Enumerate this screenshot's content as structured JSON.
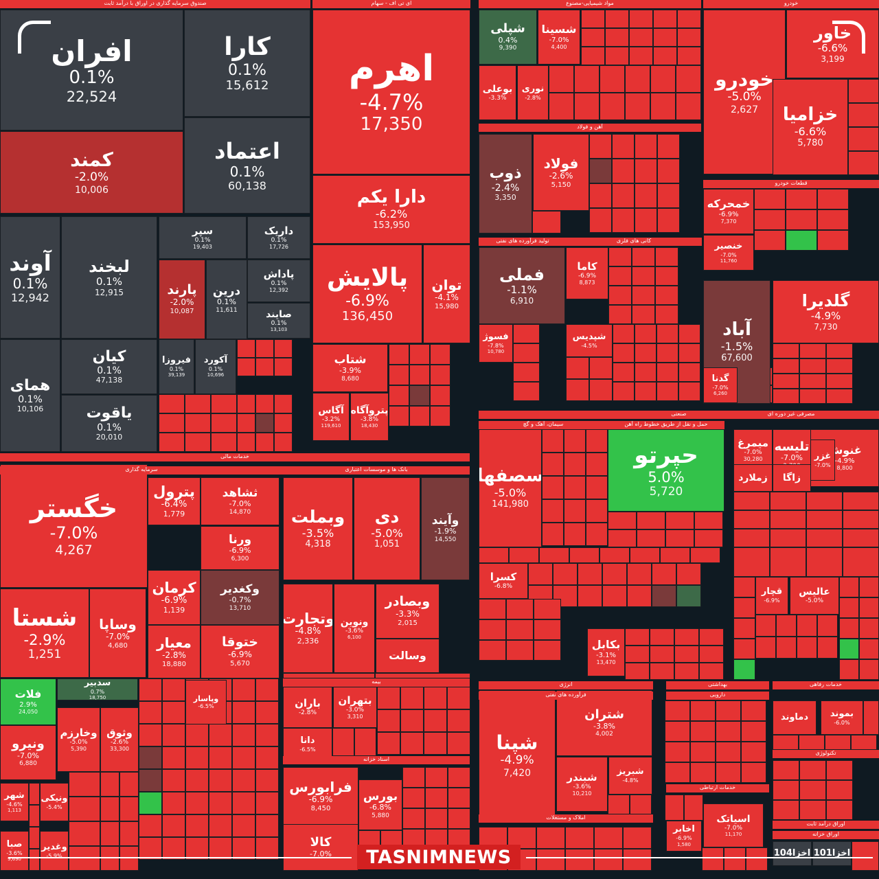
{
  "logo_text": "TASNIMNEWS",
  "colors": {
    "grey": "#3a3f46",
    "red": "#e53333",
    "red_dark": "#b53030",
    "maroon": "#7a3a3a",
    "green": "#33c24a",
    "green_dark": "#3d6a48",
    "gap": "#0f1a22"
  },
  "chart_data": {
    "type": "treemap",
    "sector_headers": [
      "صندوق سرمایه گذاری در اوراق با درآمد ثابت",
      "ای تی اف - سهام",
      "مواد شیمیایی-مصنوع",
      "خودرو",
      "آهن و فولاد",
      "قطعات خودرو",
      "تولید فرآورده های نفتی",
      "کانی های فلزی",
      "خدمات مالی",
      "سرمایه گذاری",
      "بانک ها و موسسات اعتباری",
      "صنعتی",
      "مصرفی غیر دوره ای",
      "سیمان، آهک و گچ",
      "حمل و نقل از طریق خطوط راه آهن",
      "انرژی",
      "فرآورده های نفتی",
      "بیمه",
      "بهداشتی",
      "دارویی",
      "خدمات رفاهی",
      "تکنولوژی",
      "خدمات ارتباطی",
      "اوراق درآمد ثابت",
      "اوراق خزانه",
      "اسناد خزانه",
      "املاک و مستغلات"
    ],
    "tiles": [
      {
        "name": "افران",
        "change": "0.1%",
        "value": "22,524"
      },
      {
        "name": "کارا",
        "change": "0.1%",
        "value": "15,612"
      },
      {
        "name": "کمند",
        "change": "-2.0%",
        "value": "10,006"
      },
      {
        "name": "اعتماد",
        "change": "0.1%",
        "value": "60,138"
      },
      {
        "name": "آوند",
        "change": "0.1%",
        "value": "12,942"
      },
      {
        "name": "لبخند",
        "change": "0.1%",
        "value": "12,915"
      },
      {
        "name": "سپر",
        "change": "0.1%",
        "value": "19,403"
      },
      {
        "name": "داریک",
        "change": "0.1%",
        "value": "17,726"
      },
      {
        "name": "پارند",
        "change": "-2.0%",
        "value": "10,087"
      },
      {
        "name": "درین",
        "change": "0.1%",
        "value": "11,611"
      },
      {
        "name": "پاداش",
        "change": "0.1%",
        "value": "12,392"
      },
      {
        "name": "صایند",
        "change": "0.1%",
        "value": "13,103"
      },
      {
        "name": "کیان",
        "change": "0.1%",
        "value": "47,138"
      },
      {
        "name": "همای",
        "change": "0.1%",
        "value": "10,106"
      },
      {
        "name": "یاقوت",
        "change": "0.1%",
        "value": "20,010"
      },
      {
        "name": "فیروزا",
        "change": "0.1%",
        "value": "39,139"
      },
      {
        "name": "آکورد",
        "change": "0.1%",
        "value": "10,696"
      },
      {
        "name": "اهرم",
        "change": "-4.7%",
        "value": "17,350"
      },
      {
        "name": "دارا یکم",
        "change": "-6.2%",
        "value": "153,950"
      },
      {
        "name": "پالایش",
        "change": "-6.9%",
        "value": "136,450"
      },
      {
        "name": "توان",
        "change": "-4.1%",
        "value": "15,980"
      },
      {
        "name": "شتاب",
        "change": "-3.9%",
        "value": "8,680"
      },
      {
        "name": "آگاس",
        "change": "-3.2%",
        "value": "119,610"
      },
      {
        "name": "پتروآگاه",
        "change": "-3.8%",
        "value": "18,430"
      },
      {
        "name": "شپلی",
        "change": "0.4%",
        "value": "9,390"
      },
      {
        "name": "شسینا",
        "change": "-7.0%",
        "value": "4,400"
      },
      {
        "name": "خودرو",
        "change": "-5.0%",
        "value": "2,627"
      },
      {
        "name": "خاور",
        "change": "-6.6%",
        "value": "3,199"
      },
      {
        "name": "خزامیا",
        "change": "-6.6%",
        "value": "5,780"
      },
      {
        "name": "بوعلی",
        "change": "-3.3%",
        "value": ""
      },
      {
        "name": "نوری",
        "change": "-2.8%",
        "value": ""
      },
      {
        "name": "ذوب",
        "change": "-2.4%",
        "value": "3,350"
      },
      {
        "name": "فولاد",
        "change": "-2.6%",
        "value": "5,150"
      },
      {
        "name": "خمحرکه",
        "change": "-6.9%",
        "value": "7,370"
      },
      {
        "name": "خنصیر",
        "change": "-7.0%",
        "value": "11,760"
      },
      {
        "name": "فملی",
        "change": "-1.1%",
        "value": "6,910"
      },
      {
        "name": "کاما",
        "change": "-6.9%",
        "value": "8,873"
      },
      {
        "name": "آباد",
        "change": "-1.5%",
        "value": "67,600"
      },
      {
        "name": "گلدیرا",
        "change": "-4.9%",
        "value": "7,730"
      },
      {
        "name": "فسوژ",
        "change": "-7.8%",
        "value": "10,780"
      },
      {
        "name": "شپدیس",
        "change": "-4.5%",
        "value": ""
      },
      {
        "name": "گدنا",
        "change": "-7.0%",
        "value": "6,260"
      },
      {
        "name": "خگستر",
        "change": "-7.0%",
        "value": "4,267"
      },
      {
        "name": "پترول",
        "change": "-6.4%",
        "value": "1,779"
      },
      {
        "name": "ثشاهد",
        "change": "-7.0%",
        "value": "14,870"
      },
      {
        "name": "ورنا",
        "change": "-6.9%",
        "value": "6,300"
      },
      {
        "name": "وبملت",
        "change": "-3.5%",
        "value": "4,318"
      },
      {
        "name": "دی",
        "change": "-5.0%",
        "value": "1,051"
      },
      {
        "name": "وآیند",
        "change": "-1.9%",
        "value": "14,550"
      },
      {
        "name": "کرمان",
        "change": "-6.9%",
        "value": "1,139"
      },
      {
        "name": "وکغدیر",
        "change": "-0.7%",
        "value": "13,710"
      },
      {
        "name": "شستا",
        "change": "-2.9%",
        "value": "1,251"
      },
      {
        "name": "وساپا",
        "change": "-7.0%",
        "value": "4,680"
      },
      {
        "name": "معیار",
        "change": "-2.8%",
        "value": "18,880"
      },
      {
        "name": "ختوقا",
        "change": "-6.9%",
        "value": "5,670"
      },
      {
        "name": "وتجارت",
        "change": "-4.8%",
        "value": "2,336"
      },
      {
        "name": "ونوین",
        "change": "-3.6%",
        "value": "6,100"
      },
      {
        "name": "وبصادر",
        "change": "-3.3%",
        "value": "2,015"
      },
      {
        "name": "وسالت",
        "change": "",
        "value": ""
      },
      {
        "name": "سصفها",
        "change": "-5.0%",
        "value": "141,980"
      },
      {
        "name": "حپرتو",
        "change": "5.0%",
        "value": "5,720"
      },
      {
        "name": "تلیسه",
        "change": "-7.0%",
        "value": "3,790"
      },
      {
        "name": "غنوش",
        "change": "-4.9%",
        "value": "8,800"
      },
      {
        "name": "میمرغ",
        "change": "-7.0%",
        "value": "30,280"
      },
      {
        "name": "زاگا",
        "change": "",
        "value": ""
      },
      {
        "name": "زملارد",
        "change": "",
        "value": ""
      },
      {
        "name": "غزر",
        "change": "-7.0%",
        "value": ""
      },
      {
        "name": "فلات",
        "change": "2.9%",
        "value": "24,050"
      },
      {
        "name": "سدبیر",
        "change": "0.7%",
        "value": "18,750"
      },
      {
        "name": "ونیرو",
        "change": "-7.0%",
        "value": "6,880"
      },
      {
        "name": "وخارزم",
        "change": "-5.0%",
        "value": "5,390"
      },
      {
        "name": "وثوق",
        "change": "-2.6%",
        "value": "33,300"
      },
      {
        "name": "باران",
        "change": "-2.8%",
        "value": ""
      },
      {
        "name": "بتهران",
        "change": "-3.0%",
        "value": "3,310"
      },
      {
        "name": "دانا",
        "change": "-6.5%",
        "value": ""
      },
      {
        "name": "کسرا",
        "change": "-6.8%",
        "value": ""
      },
      {
        "name": "بکابل",
        "change": "-3.1%",
        "value": "13,470"
      },
      {
        "name": "شپنا",
        "change": "-4.9%",
        "value": "7,420"
      },
      {
        "name": "شتران",
        "change": "-3.8%",
        "value": "4,002"
      },
      {
        "name": "شبندر",
        "change": "-3.6%",
        "value": "10,210"
      },
      {
        "name": "شبریز",
        "change": "-4.8%",
        "value": ""
      },
      {
        "name": "فرابورس",
        "change": "-6.9%",
        "value": "8,450"
      },
      {
        "name": "بورس",
        "change": "-6.8%",
        "value": "5,880"
      },
      {
        "name": "کالا",
        "change": "-7.0%",
        "value": ""
      },
      {
        "name": "اسیاتک",
        "change": "-7.0%",
        "value": "11,170"
      },
      {
        "name": "اخابر",
        "change": "-6.9%",
        "value": "1,580"
      },
      {
        "name": "عالیس",
        "change": "-5.0%",
        "value": ""
      },
      {
        "name": "قچار",
        "change": "-6.9%",
        "value": ""
      },
      {
        "name": "دماوند",
        "change": "",
        "value": ""
      },
      {
        "name": "بموند",
        "change": "-6.0%",
        "value": ""
      },
      {
        "name": "اخزا104",
        "change": "",
        "value": ""
      },
      {
        "name": "اخزا101",
        "change": "",
        "value": ""
      },
      {
        "name": "شهر",
        "change": "-4.6%",
        "value": "1,113"
      },
      {
        "name": "صبا",
        "change": "-3.6%",
        "value": "9,690"
      },
      {
        "name": "وغدیر",
        "change": "-5.9%",
        "value": ""
      },
      {
        "name": "ونیکی",
        "change": "-5.4%",
        "value": ""
      },
      {
        "name": "وپاسار",
        "change": "-6.5%",
        "value": ""
      }
    ]
  }
}
